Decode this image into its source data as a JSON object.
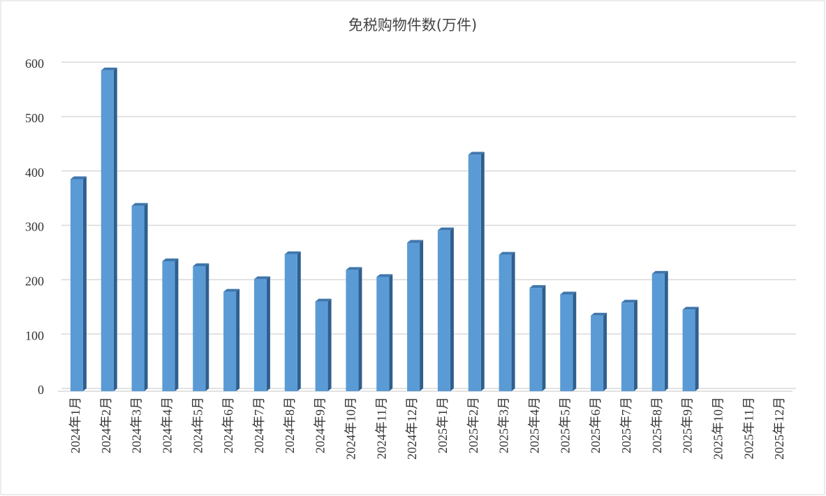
{
  "chart_data": {
    "type": "bar",
    "title": "免税购物件数(万件)",
    "categories": [
      "2024年1月",
      "2024年2月",
      "2024年3月",
      "2024年4月",
      "2024年5月",
      "2024年6月",
      "2024年7月",
      "2024年8月",
      "2024年9月",
      "2024年10月",
      "2024年11月",
      "2024年12月",
      "2025年1月",
      "2025年2月",
      "2025年3月",
      "2025年4月",
      "2025年5月",
      "2025年6月",
      "2025年7月",
      "2025年8月",
      "2025年9月",
      "2025年10月",
      "2025年11月",
      "2025年12月"
    ],
    "values": [
      390,
      590,
      341,
      239,
      230,
      183,
      206,
      252,
      165,
      223,
      210,
      273,
      296,
      435,
      251,
      190,
      178,
      139,
      163,
      216,
      150,
      null,
      null,
      null
    ],
    "color": "#5b9bd5",
    "ylim": [
      0,
      600
    ],
    "yticks": [
      0,
      100,
      200,
      300,
      400,
      500,
      600
    ],
    "grid": true
  }
}
